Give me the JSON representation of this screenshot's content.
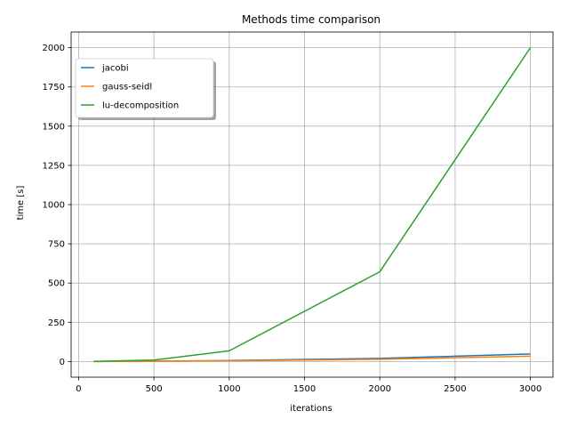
{
  "chart_data": {
    "type": "line",
    "title": "Methods time comparison",
    "xlabel": "iterations",
    "ylabel": "time [s]",
    "xlim": [
      -50,
      3150
    ],
    "ylim": [
      -100,
      2100
    ],
    "xticks": [
      0,
      500,
      1000,
      1500,
      2000,
      2500,
      3000
    ],
    "yticks": [
      0,
      250,
      500,
      750,
      1000,
      1250,
      1500,
      1750,
      2000
    ],
    "grid": true,
    "legend_position": "upper left",
    "x": [
      100,
      500,
      1000,
      2000,
      3000
    ],
    "series": [
      {
        "name": "jacobi",
        "color": "#1f77b4",
        "values": [
          0.1,
          2,
          6,
          20,
          48
        ]
      },
      {
        "name": "gauss-seidl",
        "color": "#ff7f0e",
        "values": [
          0.1,
          1.5,
          4,
          14,
          34
        ]
      },
      {
        "name": "lu-decomposition",
        "color": "#2ca02c",
        "values": [
          0.5,
          9,
          68,
          572,
          2000
        ]
      }
    ]
  }
}
